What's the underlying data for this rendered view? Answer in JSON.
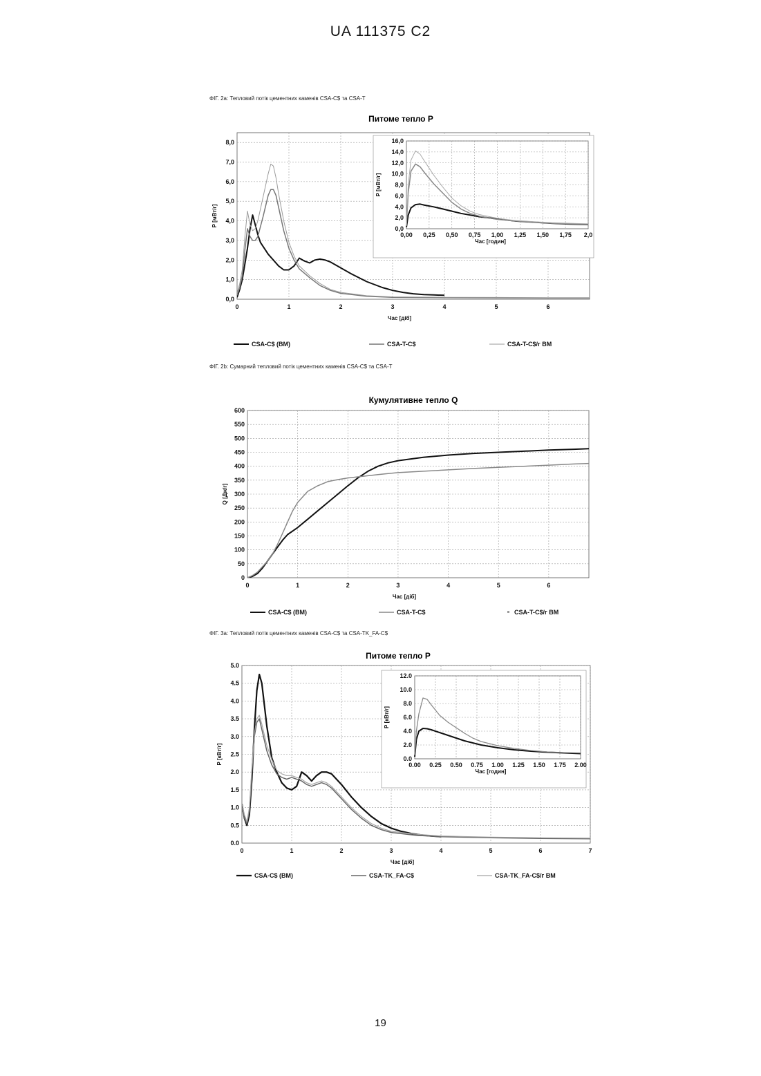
{
  "header": {
    "doc_id": "UA   111375   C2"
  },
  "page_number": "19",
  "figures": [
    {
      "caption": "ФІГ. 2а: Тепловий потік цементних каменів CSA-C$ та CSA-T",
      "title": "Питоме тепло Р",
      "xlabel": "Час [діб]",
      "ylabel": "P [мВт/г]",
      "x_ticks": [
        "0",
        "1",
        "2",
        "3",
        "4",
        "5",
        "6"
      ],
      "y_ticks": [
        "0,0",
        "1,0",
        "2,0",
        "3,0",
        "4,0",
        "5,0",
        "6,0",
        "7,0",
        "8,0"
      ],
      "legend": [
        "CSA-C$ (BM)",
        "CSA-T-C$",
        "CSA-T-C$/г BM"
      ],
      "inset": {
        "xlabel": "Час [годин]",
        "ylabel": "P [мВт/г]",
        "x_ticks": [
          "0,00",
          "0,25",
          "0,50",
          "0,75",
          "1,00",
          "1,25",
          "1,50",
          "1,75",
          "2,0"
        ],
        "y_ticks": [
          "0,0",
          "2,0",
          "4,0",
          "6,0",
          "8,0",
          "10,0",
          "12,0",
          "14,0",
          "16,0"
        ]
      }
    },
    {
      "caption": "ФІГ. 2b: Сумарний тепловий потік цементних каменів CSA-C$ та CSA-T",
      "title": "Кумулятивне тепло Q",
      "xlabel": "Час [діб]",
      "ylabel": "Q [Дж/г]",
      "x_ticks": [
        "0",
        "1",
        "2",
        "3",
        "4",
        "5",
        "6"
      ],
      "y_ticks": [
        "0",
        "50",
        "100",
        "150",
        "200",
        "250",
        "300",
        "350",
        "400",
        "450",
        "500",
        "550",
        "600"
      ],
      "legend": [
        "CSA-C$ (BM)",
        "CSA-T-C$",
        "CSA-T-C$/г BM"
      ]
    },
    {
      "caption": "ФІГ. 3а: Тепловий потік цементних каменів CSA-C$ та CSA-TK_FA-C$",
      "title": "Питоме тепло Р",
      "xlabel": "Час [діб]",
      "ylabel": "P [кВт/г]",
      "x_ticks": [
        "0",
        "1",
        "2",
        "3",
        "4",
        "5",
        "6",
        "7"
      ],
      "y_ticks": [
        "0.0",
        "0.5",
        "1.0",
        "1.5",
        "2.0",
        "2.5",
        "3.0",
        "3.5",
        "4.0",
        "4.5",
        "5.0"
      ],
      "legend": [
        "CSA-C$ (BM)",
        "CSA-TK_FA-C$",
        "CSA-TK_FA-C$/г BM"
      ],
      "inset": {
        "xlabel": "Час [годин]",
        "ylabel": "P [кВт/г]",
        "x_ticks": [
          "0.00",
          "0.25",
          "0.50",
          "0.75",
          "1.00",
          "1.25",
          "1.50",
          "1.75",
          "2.00"
        ],
        "y_ticks": [
          "0.0",
          "2.0",
          "4.0",
          "6.0",
          "8.0",
          "10.0",
          "12.0"
        ]
      }
    }
  ],
  "chart_data": [
    {
      "type": "line",
      "title": "Питоме тепло Р",
      "xlabel": "Час [діб]",
      "ylabel": "P [мВт/г]",
      "xlim": [
        0,
        6.8
      ],
      "ylim": [
        0,
        8.5
      ],
      "grid": true,
      "legend_position": "bottom",
      "series": [
        {
          "name": "CSA-C$ (BM)",
          "color": "#111111",
          "width": 2,
          "x": [
            0,
            0.05,
            0.1,
            0.15,
            0.2,
            0.25,
            0.3,
            0.35,
            0.4,
            0.45,
            0.5,
            0.6,
            0.7,
            0.8,
            0.9,
            1.0,
            1.1,
            1.2,
            1.3,
            1.4,
            1.5,
            1.6,
            1.7,
            1.8,
            2.0,
            2.2,
            2.5,
            2.8,
            3.0,
            3.2,
            3.4,
            3.6,
            3.8,
            4.0
          ],
          "y": [
            0.1,
            0.5,
            1.0,
            1.8,
            2.6,
            3.6,
            4.3,
            3.8,
            3.3,
            2.9,
            2.7,
            2.3,
            2.0,
            1.7,
            1.5,
            1.5,
            1.7,
            2.1,
            1.95,
            1.85,
            2.0,
            2.05,
            2.0,
            1.9,
            1.6,
            1.3,
            0.9,
            0.6,
            0.45,
            0.35,
            0.28,
            0.24,
            0.22,
            0.2
          ]
        },
        {
          "name": "CSA-T-C$",
          "color": "#777777",
          "width": 1.5,
          "x": [
            0,
            0.05,
            0.1,
            0.15,
            0.2,
            0.25,
            0.3,
            0.35,
            0.4,
            0.5,
            0.6,
            0.65,
            0.7,
            0.75,
            0.8,
            0.9,
            1.0,
            1.1,
            1.2,
            1.4,
            1.6,
            1.8,
            2.0,
            2.5,
            3.0,
            4.0,
            5.0,
            6.0,
            6.8
          ],
          "y": [
            0.2,
            0.6,
            1.2,
            2.5,
            3.6,
            3.2,
            3.0,
            3.0,
            3.2,
            4.2,
            5.3,
            5.6,
            5.6,
            5.3,
            4.7,
            3.5,
            2.6,
            2.0,
            1.55,
            1.1,
            0.7,
            0.45,
            0.3,
            0.15,
            0.1,
            0.08,
            0.07,
            0.06,
            0.06
          ]
        },
        {
          "name": "CSA-T-C$/г BM",
          "color": "#9a9a9a",
          "width": 1,
          "x": [
            0,
            0.05,
            0.1,
            0.15,
            0.2,
            0.25,
            0.3,
            0.35,
            0.4,
            0.5,
            0.6,
            0.65,
            0.7,
            0.75,
            0.8,
            0.9,
            1.0,
            1.1,
            1.2,
            1.4,
            1.6,
            1.8,
            2.0,
            2.5,
            3.0,
            4.0,
            5.0,
            6.0,
            6.8
          ],
          "y": [
            0.3,
            0.8,
            1.5,
            3.2,
            4.5,
            3.8,
            3.5,
            3.6,
            4.0,
            5.2,
            6.4,
            6.9,
            6.8,
            6.2,
            5.4,
            4.0,
            2.9,
            2.2,
            1.7,
            1.2,
            0.8,
            0.5,
            0.35,
            0.18,
            0.12,
            0.1,
            0.09,
            0.08,
            0.08
          ]
        }
      ],
      "inset": {
        "xlabel": "Час [годин]",
        "ylabel": "P [мВт/г]",
        "xlim": [
          0,
          2
        ],
        "ylim": [
          0,
          16
        ],
        "series": [
          {
            "name": "CSA-C$ (BM)",
            "color": "#111111",
            "width": 2,
            "x": [
              0,
              0.02,
              0.05,
              0.1,
              0.15,
              0.2,
              0.3,
              0.4,
              0.5,
              0.6,
              0.7,
              0.8,
              1.0,
              1.2,
              1.4,
              1.6,
              1.8,
              2.0
            ],
            "y": [
              0.3,
              2.5,
              3.8,
              4.4,
              4.5,
              4.3,
              4.0,
              3.6,
              3.2,
              2.8,
              2.5,
              2.2,
              1.8,
              1.4,
              1.2,
              1.0,
              0.85,
              0.75
            ]
          },
          {
            "name": "CSA-T-C$",
            "color": "#888888",
            "width": 1.5,
            "x": [
              0,
              0.02,
              0.05,
              0.1,
              0.15,
              0.2,
              0.3,
              0.4,
              0.5,
              0.6,
              0.7,
              0.8,
              1.0,
              1.2,
              1.4,
              1.6,
              1.8,
              2.0
            ],
            "y": [
              0.5,
              6.5,
              10.5,
              11.8,
              11.3,
              10.2,
              8.2,
              6.5,
              4.8,
              3.6,
              2.8,
              2.3,
              1.7,
              1.4,
              1.2,
              1.0,
              0.9,
              0.8
            ]
          },
          {
            "name": "CSA-T-C$/г BM",
            "color": "#aaaaaa",
            "width": 1,
            "x": [
              0,
              0.02,
              0.05,
              0.1,
              0.15,
              0.2,
              0.3,
              0.4,
              0.5,
              0.6,
              0.7,
              0.8,
              1.0,
              1.2,
              1.4,
              1.6,
              1.8,
              2.0
            ],
            "y": [
              0.6,
              8.0,
              12.5,
              14.2,
              13.6,
              12.3,
              9.8,
              7.6,
              5.6,
              4.2,
              3.2,
              2.6,
              1.9,
              1.5,
              1.3,
              1.1,
              1.0,
              0.9
            ]
          }
        ]
      }
    },
    {
      "type": "line",
      "title": "Кумулятивне тепло Q",
      "xlabel": "Час [діб]",
      "ylabel": "Q [Дж/г]",
      "xlim": [
        0,
        6.8
      ],
      "ylim": [
        0,
        600
      ],
      "grid": true,
      "legend_position": "bottom",
      "series": [
        {
          "name": "CSA-C$ (BM)",
          "color": "#111111",
          "width": 2,
          "x": [
            0,
            0.1,
            0.2,
            0.3,
            0.4,
            0.5,
            0.6,
            0.7,
            0.8,
            1.0,
            1.2,
            1.4,
            1.6,
            1.8,
            2.0,
            2.2,
            2.4,
            2.6,
            2.8,
            3.0,
            3.5,
            4.0,
            4.5,
            5.0,
            5.5,
            6.0,
            6.5,
            6.8
          ],
          "y": [
            0,
            5,
            15,
            35,
            60,
            85,
            110,
            135,
            155,
            180,
            210,
            240,
            270,
            300,
            330,
            358,
            382,
            400,
            412,
            420,
            432,
            440,
            446,
            450,
            454,
            458,
            461,
            463
          ]
        },
        {
          "name": "CSA-T-C$",
          "color": "#888888",
          "width": 1.5,
          "x": [
            0,
            0.1,
            0.2,
            0.3,
            0.4,
            0.5,
            0.6,
            0.7,
            0.8,
            0.9,
            1.0,
            1.2,
            1.4,
            1.6,
            1.8,
            2.0,
            2.2,
            2.4,
            2.6,
            2.8,
            3.0,
            3.5,
            4.0,
            4.5,
            5.0,
            5.5,
            6.0,
            6.5,
            6.8
          ],
          "y": [
            0,
            8,
            20,
            40,
            60,
            85,
            120,
            160,
            200,
            240,
            270,
            310,
            330,
            345,
            352,
            358,
            362,
            366,
            370,
            374,
            377,
            382,
            387,
            392,
            396,
            400,
            404,
            408,
            410
          ]
        }
      ]
    },
    {
      "type": "line",
      "title": "Питоме тепло Р",
      "xlabel": "Час [діб]",
      "ylabel": "P [кВт/г]",
      "xlim": [
        0,
        7
      ],
      "ylim": [
        0,
        5
      ],
      "grid": true,
      "legend_position": "bottom",
      "series": [
        {
          "name": "CSA-C$ (BM)",
          "color": "#111111",
          "width": 2.2,
          "x": [
            0,
            0.05,
            0.1,
            0.15,
            0.2,
            0.25,
            0.3,
            0.35,
            0.4,
            0.5,
            0.6,
            0.7,
            0.8,
            0.9,
            1.0,
            1.1,
            1.2,
            1.3,
            1.4,
            1.5,
            1.6,
            1.7,
            1.8,
            1.9,
            2.0,
            2.2,
            2.4,
            2.6,
            2.8,
            3.0,
            3.2,
            3.4,
            3.6,
            3.8,
            4.0
          ],
          "y": [
            1.1,
            0.7,
            0.5,
            0.8,
            1.8,
            3.2,
            4.3,
            4.75,
            4.5,
            3.3,
            2.4,
            2.0,
            1.7,
            1.55,
            1.5,
            1.6,
            2.0,
            1.9,
            1.75,
            1.9,
            2.0,
            2.0,
            1.95,
            1.8,
            1.65,
            1.3,
            1.0,
            0.75,
            0.55,
            0.42,
            0.33,
            0.27,
            0.23,
            0.2,
            0.18
          ]
        },
        {
          "name": "CSA-TK_FA-C$",
          "color": "#666666",
          "width": 1.5,
          "x": [
            0,
            0.05,
            0.1,
            0.15,
            0.2,
            0.25,
            0.3,
            0.35,
            0.4,
            0.5,
            0.6,
            0.7,
            0.8,
            0.9,
            1.0,
            1.1,
            1.2,
            1.3,
            1.4,
            1.5,
            1.6,
            1.7,
            1.8,
            2.0,
            2.2,
            2.4,
            2.6,
            2.8,
            3.0,
            3.5,
            4.0,
            5.0,
            6.0,
            7.0
          ],
          "y": [
            1.0,
            0.7,
            0.55,
            0.9,
            2.0,
            3.0,
            3.4,
            3.5,
            3.2,
            2.6,
            2.2,
            1.95,
            1.85,
            1.8,
            1.85,
            1.8,
            1.75,
            1.65,
            1.6,
            1.65,
            1.7,
            1.65,
            1.55,
            1.25,
            0.95,
            0.7,
            0.5,
            0.38,
            0.3,
            0.22,
            0.18,
            0.15,
            0.13,
            0.12
          ]
        },
        {
          "name": "CSA-TK_FA-C$/г BM",
          "color": "#a5a5a5",
          "width": 1.2,
          "x": [
            0,
            0.05,
            0.1,
            0.15,
            0.2,
            0.25,
            0.3,
            0.35,
            0.4,
            0.5,
            0.6,
            0.7,
            0.8,
            0.9,
            1.0,
            1.1,
            1.2,
            1.3,
            1.4,
            1.5,
            1.6,
            1.7,
            1.8,
            2.0,
            2.2,
            2.4,
            2.6,
            2.8,
            3.0,
            3.5,
            4.0,
            5.0,
            6.0,
            7.0
          ],
          "y": [
            1.1,
            0.8,
            0.6,
            1.0,
            2.1,
            3.1,
            3.5,
            3.6,
            3.35,
            2.75,
            2.35,
            2.05,
            1.95,
            1.9,
            1.9,
            1.85,
            1.8,
            1.7,
            1.65,
            1.7,
            1.75,
            1.7,
            1.6,
            1.3,
            1.0,
            0.75,
            0.55,
            0.42,
            0.33,
            0.25,
            0.2,
            0.17,
            0.15,
            0.14
          ]
        }
      ],
      "inset": {
        "xlabel": "Час [годин]",
        "ylabel": "P [кВт/г]",
        "xlim": [
          0,
          2
        ],
        "ylim": [
          0,
          12
        ],
        "series": [
          {
            "name": "CSA-C$ (BM)",
            "color": "#111111",
            "width": 2,
            "x": [
              0,
              0.02,
              0.05,
              0.1,
              0.15,
              0.2,
              0.3,
              0.4,
              0.5,
              0.6,
              0.7,
              0.8,
              1.0,
              1.2,
              1.4,
              1.6,
              1.8,
              2.0
            ],
            "y": [
              0.3,
              2.8,
              4.0,
              4.4,
              4.35,
              4.2,
              3.8,
              3.4,
              3.0,
              2.6,
              2.3,
              2.0,
              1.6,
              1.3,
              1.1,
              0.95,
              0.85,
              0.75
            ]
          },
          {
            "name": "CSA-TK_FA-C$",
            "color": "#8a8a8a",
            "width": 1.3,
            "x": [
              0,
              0.02,
              0.05,
              0.1,
              0.15,
              0.2,
              0.3,
              0.4,
              0.5,
              0.6,
              0.7,
              0.8,
              1.0,
              1.2,
              1.4,
              1.6,
              1.8,
              2.0
            ],
            "y": [
              0.5,
              4.0,
              6.5,
              8.8,
              8.6,
              7.8,
              6.3,
              5.3,
              4.5,
              3.7,
              3.0,
              2.5,
              1.9,
              1.5,
              1.2,
              1.0,
              0.9,
              0.85
            ]
          }
        ]
      }
    }
  ]
}
